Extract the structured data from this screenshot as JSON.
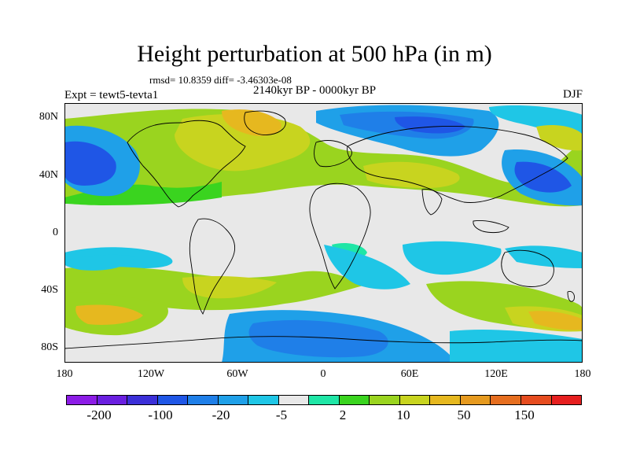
{
  "title": "Height perturbation at 500 hPa (in m)",
  "stats": "rmsd= 10.8359 diff= -3.46303e-08",
  "period": "2140kyr BP - 0000kyr BP",
  "experiment": "Expt = tewt5-tevta1",
  "season": "DJF",
  "lat_labels": [
    "80N",
    "40N",
    "0",
    "40S",
    "80S"
  ],
  "lon_labels": [
    "180",
    "120W",
    "60W",
    "0",
    "60E",
    "120E",
    "180"
  ],
  "colorbar": {
    "colors": [
      "#8c1ce6",
      "#6a1fe0",
      "#3b2fd8",
      "#1f56e6",
      "#1f7fe8",
      "#1fa0e8",
      "#1fc6e6",
      "#e8e8e8",
      "#1fe6a6",
      "#3ad41f",
      "#9ad41f",
      "#c8d41f",
      "#e6b81f",
      "#e69a1f",
      "#e66e1f",
      "#e64c1f",
      "#e61f1f"
    ],
    "labels": [
      "-200",
      "-100",
      "-20",
      "-5",
      "2",
      "10",
      "50",
      "150"
    ]
  },
  "map_colors": {
    "background": "#e8e8e8",
    "coast": "#000000"
  }
}
